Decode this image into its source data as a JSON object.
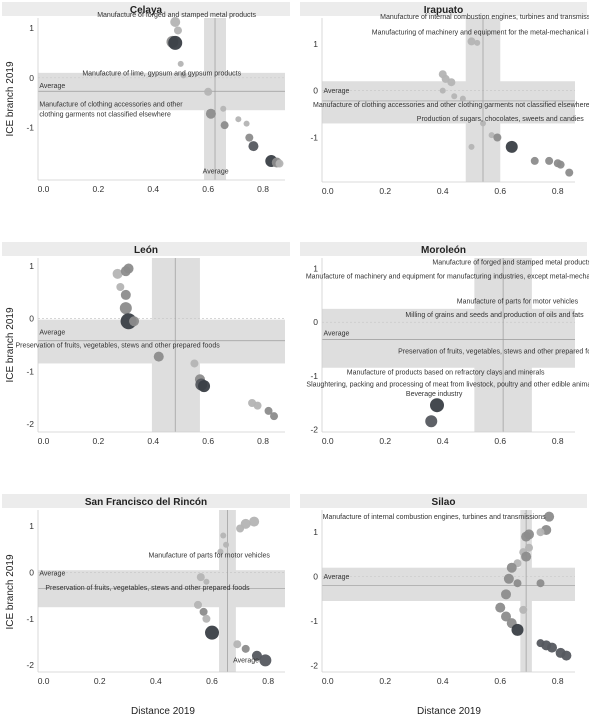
{
  "colors": {
    "header_bg": "#ececec",
    "band": "#dedede",
    "dot_light": "#b4b4b4",
    "dot_mid": "#8c8c8c",
    "dot_dark": "#55595f",
    "dot_darkest": "#3a3f46",
    "line": "#9a9a9a",
    "axis": "#cfcfcf",
    "text": "#333333"
  },
  "figure": {
    "y_axis_label": "ICE branch  2019",
    "x_axis_label": "Distance 2019"
  },
  "chart_data": [
    {
      "type": "scatter",
      "title": "Celaya",
      "xlim": [
        -0.02,
        0.88
      ],
      "ylim": [
        -2.05,
        1.2
      ],
      "xticks": [
        0.0,
        0.2,
        0.4,
        0.6,
        0.8
      ],
      "yticks": [
        1,
        0,
        -1
      ],
      "show_x_ticklabels": true,
      "show_y_ticklabels": true,
      "band_x": [
        0.585,
        0.665
      ],
      "band_y": [
        -0.65,
        0.1
      ],
      "avg_x": 0.625,
      "avg_y": -0.27,
      "points": [
        {
          "x": 0.48,
          "y": 1.12,
          "s": 5,
          "c": "light"
        },
        {
          "x": 0.49,
          "y": 0.95,
          "s": 4,
          "c": "light"
        },
        {
          "x": 0.47,
          "y": 0.72,
          "s": 6,
          "c": "mid"
        },
        {
          "x": 0.48,
          "y": 0.7,
          "s": 7,
          "c": "darkest"
        },
        {
          "x": 0.5,
          "y": 0.28,
          "s": 3,
          "c": "light"
        },
        {
          "x": 0.51,
          "y": 0.05,
          "s": 3,
          "c": "light"
        },
        {
          "x": 0.6,
          "y": -0.28,
          "s": 4,
          "c": "light"
        },
        {
          "x": 0.61,
          "y": -0.72,
          "s": 5,
          "c": "mid"
        },
        {
          "x": 0.655,
          "y": -0.62,
          "s": 3,
          "c": "light"
        },
        {
          "x": 0.66,
          "y": -0.95,
          "s": 4,
          "c": "mid"
        },
        {
          "x": 0.71,
          "y": -0.83,
          "s": 3,
          "c": "light"
        },
        {
          "x": 0.74,
          "y": -0.92,
          "s": 3,
          "c": "light"
        },
        {
          "x": 0.75,
          "y": -1.2,
          "s": 4,
          "c": "mid"
        },
        {
          "x": 0.765,
          "y": -1.37,
          "s": 5,
          "c": "dark"
        },
        {
          "x": 0.83,
          "y": -1.67,
          "s": 6,
          "c": "darkest"
        },
        {
          "x": 0.85,
          "y": -1.7,
          "s": 5,
          "c": "mid"
        },
        {
          "x": 0.86,
          "y": -1.72,
          "s": 4,
          "c": "light"
        }
      ],
      "annotations": [
        {
          "lines": [
            "Manufacture of forged and stamped metal products"
          ],
          "x": 0.485,
          "y": 1.22,
          "anchor": "middle"
        },
        {
          "lines": [
            "Manufacture of lime, gypsum and gypsum products"
          ],
          "x": 0.72,
          "y": 0.05,
          "anchor": "end"
        },
        {
          "lines": [
            "Average"
          ],
          "x": -0.015,
          "y": -0.2,
          "anchor": "start"
        },
        {
          "lines": [
            "Manufacture of clothing accessories and other",
            "clothing garments not classified elsewhere"
          ],
          "x": -0.015,
          "y": -0.58,
          "anchor": "start"
        },
        {
          "lines": [
            "Average"
          ],
          "x": 0.58,
          "y": -1.92,
          "anchor": "start"
        }
      ]
    },
    {
      "type": "scatter",
      "title": "Irapuato",
      "xlim": [
        -0.02,
        0.86
      ],
      "ylim": [
        -1.95,
        1.55
      ],
      "xticks": [
        0.0,
        0.2,
        0.4,
        0.6,
        0.8
      ],
      "yticks": [
        1,
        0,
        -1
      ],
      "show_x_ticklabels": true,
      "show_y_ticklabels": true,
      "band_x": [
        0.48,
        0.6
      ],
      "band_y": [
        -0.7,
        0.2
      ],
      "avg_x": 0.54,
      "avg_y": -0.22,
      "points": [
        {
          "x": 0.5,
          "y": 1.05,
          "s": 4,
          "c": "light"
        },
        {
          "x": 0.52,
          "y": 1.02,
          "s": 3,
          "c": "light"
        },
        {
          "x": 0.4,
          "y": 0.35,
          "s": 4,
          "c": "light"
        },
        {
          "x": 0.41,
          "y": 0.25,
          "s": 4,
          "c": "light"
        },
        {
          "x": 0.43,
          "y": 0.18,
          "s": 4,
          "c": "light"
        },
        {
          "x": 0.4,
          "y": 0.0,
          "s": 3,
          "c": "light"
        },
        {
          "x": 0.44,
          "y": -0.12,
          "s": 3,
          "c": "light"
        },
        {
          "x": 0.47,
          "y": -0.17,
          "s": 3,
          "c": "light"
        },
        {
          "x": 0.54,
          "y": -0.7,
          "s": 3,
          "c": "light"
        },
        {
          "x": 0.5,
          "y": -1.2,
          "s": 3,
          "c": "light"
        },
        {
          "x": 0.57,
          "y": -0.95,
          "s": 3,
          "c": "light"
        },
        {
          "x": 0.59,
          "y": -1.0,
          "s": 4,
          "c": "mid"
        },
        {
          "x": 0.64,
          "y": -1.2,
          "s": 6,
          "c": "darkest"
        },
        {
          "x": 0.72,
          "y": -1.5,
          "s": 4,
          "c": "mid"
        },
        {
          "x": 0.77,
          "y": -1.5,
          "s": 4,
          "c": "mid"
        },
        {
          "x": 0.8,
          "y": -1.55,
          "s": 4,
          "c": "mid"
        },
        {
          "x": 0.81,
          "y": -1.58,
          "s": 4,
          "c": "mid"
        },
        {
          "x": 0.84,
          "y": -1.75,
          "s": 4,
          "c": "mid"
        }
      ],
      "annotations": [
        {
          "lines": [
            "Manufacture of internal combustion engines, turbines and transmissions"
          ],
          "x": 0.57,
          "y": 1.53,
          "anchor": "middle"
        },
        {
          "lines": [
            "Manufacturing of machinery and equipment for the metal-mechanical industry"
          ],
          "x": 0.57,
          "y": 1.2,
          "anchor": "middle"
        },
        {
          "lines": [
            "Average"
          ],
          "x": -0.015,
          "y": -0.05,
          "anchor": "start"
        },
        {
          "lines": [
            "Manufacture of clothing accessories and other clothing garments not classified elsewhere"
          ],
          "x": 0.43,
          "y": -0.35,
          "anchor": "middle"
        },
        {
          "lines": [
            "Production of sugars, chocolates, sweets and candies"
          ],
          "x": 0.6,
          "y": -0.65,
          "anchor": "middle"
        }
      ]
    },
    {
      "type": "scatter",
      "title": "León",
      "xlim": [
        -0.02,
        0.88
      ],
      "ylim": [
        -2.15,
        1.15
      ],
      "xticks": [
        0.0,
        0.2,
        0.4,
        0.6,
        0.8
      ],
      "yticks": [
        1,
        0,
        -1,
        -2
      ],
      "show_x_ticklabels": true,
      "show_y_ticklabels": true,
      "band_x": [
        0.395,
        0.57
      ],
      "band_y": [
        -0.85,
        -0.02
      ],
      "avg_x": 0.48,
      "avg_y": -0.42,
      "points": [
        {
          "x": 0.27,
          "y": 0.85,
          "s": 5,
          "c": "light"
        },
        {
          "x": 0.3,
          "y": 0.9,
          "s": 5,
          "c": "mid"
        },
        {
          "x": 0.31,
          "y": 0.95,
          "s": 5,
          "c": "mid"
        },
        {
          "x": 0.28,
          "y": 0.6,
          "s": 4,
          "c": "light"
        },
        {
          "x": 0.3,
          "y": 0.45,
          "s": 5,
          "c": "mid"
        },
        {
          "x": 0.3,
          "y": 0.2,
          "s": 6,
          "c": "mid"
        },
        {
          "x": 0.31,
          "y": -0.05,
          "s": 8,
          "c": "darkest"
        },
        {
          "x": 0.33,
          "y": -0.05,
          "s": 5,
          "c": "mid"
        },
        {
          "x": 0.42,
          "y": -0.72,
          "s": 5,
          "c": "mid"
        },
        {
          "x": 0.55,
          "y": -0.85,
          "s": 4,
          "c": "light"
        },
        {
          "x": 0.57,
          "y": -1.15,
          "s": 5,
          "c": "mid"
        },
        {
          "x": 0.575,
          "y": -1.25,
          "s": 6,
          "c": "dark"
        },
        {
          "x": 0.585,
          "y": -1.28,
          "s": 6,
          "c": "darkest"
        },
        {
          "x": 0.76,
          "y": -1.6,
          "s": 4,
          "c": "light"
        },
        {
          "x": 0.78,
          "y": -1.65,
          "s": 4,
          "c": "light"
        },
        {
          "x": 0.82,
          "y": -1.75,
          "s": 4,
          "c": "mid"
        },
        {
          "x": 0.84,
          "y": -1.85,
          "s": 4,
          "c": "mid"
        }
      ],
      "annotations": [
        {
          "lines": [
            "Average"
          ],
          "x": -0.015,
          "y": -0.3,
          "anchor": "start"
        },
        {
          "lines": [
            "Preservation of fruits, vegetables, stews and other prepared foods"
          ],
          "x": 0.27,
          "y": -0.55,
          "anchor": "middle"
        }
      ]
    },
    {
      "type": "scatter",
      "title": "Moroleón",
      "xlim": [
        -0.02,
        0.86
      ],
      "ylim": [
        -2.05,
        1.2
      ],
      "xticks": [
        0.0,
        0.2,
        0.4,
        0.6,
        0.8
      ],
      "yticks": [
        1,
        0,
        -1,
        -2
      ],
      "show_x_ticklabels": true,
      "show_y_ticklabels": true,
      "band_x": [
        0.51,
        0.71
      ],
      "band_y": [
        -0.85,
        0.25
      ],
      "avg_x": 0.61,
      "avg_y": -0.32,
      "points": [
        {
          "x": 0.38,
          "y": -1.55,
          "s": 7,
          "c": "darkest"
        },
        {
          "x": 0.36,
          "y": -1.85,
          "s": 6,
          "c": "dark"
        }
      ],
      "annotations": [
        {
          "lines": [
            "Manufacture of forged and stamped metal products"
          ],
          "x": 0.64,
          "y": 1.08,
          "anchor": "middle"
        },
        {
          "lines": [
            "Manufacture of machinery and equipment for manufacturing industries, except metal-mechanics"
          ],
          "x": 0.44,
          "y": 0.82,
          "anchor": "middle"
        },
        {
          "lines": [
            "Manufacture of parts for motor vehicles"
          ],
          "x": 0.66,
          "y": 0.35,
          "anchor": "middle"
        },
        {
          "lines": [
            "Milling of grains and seeds and production of oils and fats"
          ],
          "x": 0.58,
          "y": 0.1,
          "anchor": "middle"
        },
        {
          "lines": [
            "Average"
          ],
          "x": -0.015,
          "y": -0.25,
          "anchor": "start"
        },
        {
          "lines": [
            "Preservation of fruits, vegetables, stews and other prepared foods"
          ],
          "x": 0.6,
          "y": -0.58,
          "anchor": "middle"
        },
        {
          "lines": [
            "Manufacture of products based on refractory clays and minerals"
          ],
          "x": 0.41,
          "y": -0.98,
          "anchor": "middle"
        },
        {
          "lines": [
            "Slaughtering, packing and processing of meat from livestock, poultry and other edible animals"
          ],
          "x": 0.43,
          "y": -1.2,
          "anchor": "middle"
        },
        {
          "lines": [
            "Beverage industry"
          ],
          "x": 0.37,
          "y": -1.38,
          "anchor": "middle"
        }
      ]
    },
    {
      "type": "scatter",
      "title": "San Francisco del Rincón",
      "xlim": [
        -0.02,
        0.86
      ],
      "ylim": [
        -2.15,
        1.35
      ],
      "xticks": [
        0.0,
        0.2,
        0.4,
        0.6,
        0.8
      ],
      "yticks": [
        1,
        0,
        -1,
        -2
      ],
      "show_x_ticklabels": true,
      "show_y_ticklabels": true,
      "band_x": [
        0.625,
        0.685
      ],
      "band_y": [
        -0.75,
        0.05
      ],
      "avg_x": 0.655,
      "avg_y": -0.35,
      "points": [
        {
          "x": 0.64,
          "y": 0.8,
          "s": 3,
          "c": "light"
        },
        {
          "x": 0.65,
          "y": 0.6,
          "s": 3,
          "c": "light"
        },
        {
          "x": 0.7,
          "y": 0.95,
          "s": 4,
          "c": "light"
        },
        {
          "x": 0.72,
          "y": 1.05,
          "s": 5,
          "c": "light"
        },
        {
          "x": 0.75,
          "y": 1.1,
          "s": 5,
          "c": "light"
        },
        {
          "x": 0.63,
          "y": 0.45,
          "s": 3,
          "c": "light"
        },
        {
          "x": 0.56,
          "y": -0.1,
          "s": 4,
          "c": "light"
        },
        {
          "x": 0.58,
          "y": -0.2,
          "s": 3,
          "c": "light"
        },
        {
          "x": 0.55,
          "y": -0.7,
          "s": 4,
          "c": "light"
        },
        {
          "x": 0.57,
          "y": -0.85,
          "s": 4,
          "c": "mid"
        },
        {
          "x": 0.58,
          "y": -1.0,
          "s": 4,
          "c": "light"
        },
        {
          "x": 0.6,
          "y": -1.3,
          "s": 7,
          "c": "darkest"
        },
        {
          "x": 0.69,
          "y": -1.55,
          "s": 4,
          "c": "light"
        },
        {
          "x": 0.72,
          "y": -1.65,
          "s": 4,
          "c": "mid"
        },
        {
          "x": 0.76,
          "y": -1.8,
          "s": 5,
          "c": "dark"
        },
        {
          "x": 0.79,
          "y": -1.9,
          "s": 6,
          "c": "dark"
        }
      ],
      "annotations": [
        {
          "lines": [
            "Manufacture of parts for motor vehicles"
          ],
          "x": 0.59,
          "y": 0.32,
          "anchor": "middle"
        },
        {
          "lines": [
            "Average"
          ],
          "x": -0.015,
          "y": -0.07,
          "anchor": "start"
        },
        {
          "lines": [
            "Preservation of fruits, vegetables, stews and other prepared foods"
          ],
          "x": 0.37,
          "y": -0.38,
          "anchor": "middle"
        },
        {
          "lines": [
            "Average"
          ],
          "x": 0.675,
          "y": -1.95,
          "anchor": "start"
        }
      ]
    },
    {
      "type": "scatter",
      "title": "Silao",
      "xlim": [
        -0.02,
        0.86
      ],
      "ylim": [
        -2.15,
        1.5
      ],
      "xticks": [
        0.0,
        0.2,
        0.4,
        0.6,
        0.8
      ],
      "yticks": [
        1,
        0,
        -1,
        -2
      ],
      "show_x_ticklabels": true,
      "show_y_ticklabels": true,
      "band_x": [
        0.67,
        0.71
      ],
      "band_y": [
        -0.55,
        0.2
      ],
      "avg_x": 0.69,
      "avg_y": -0.2,
      "points": [
        {
          "x": 0.77,
          "y": 1.35,
          "s": 5,
          "c": "mid"
        },
        {
          "x": 0.76,
          "y": 1.05,
          "s": 5,
          "c": "mid"
        },
        {
          "x": 0.74,
          "y": 1.0,
          "s": 4,
          "c": "light"
        },
        {
          "x": 0.7,
          "y": 0.95,
          "s": 5,
          "c": "mid"
        },
        {
          "x": 0.69,
          "y": 0.9,
          "s": 5,
          "c": "mid"
        },
        {
          "x": 0.7,
          "y": 0.65,
          "s": 4,
          "c": "light"
        },
        {
          "x": 0.68,
          "y": 0.55,
          "s": 4,
          "c": "light"
        },
        {
          "x": 0.69,
          "y": 0.45,
          "s": 5,
          "c": "mid"
        },
        {
          "x": 0.66,
          "y": 0.3,
          "s": 4,
          "c": "light"
        },
        {
          "x": 0.64,
          "y": 0.2,
          "s": 5,
          "c": "mid"
        },
        {
          "x": 0.63,
          "y": -0.05,
          "s": 5,
          "c": "mid"
        },
        {
          "x": 0.66,
          "y": -0.15,
          "s": 4,
          "c": "mid"
        },
        {
          "x": 0.74,
          "y": -0.15,
          "s": 4,
          "c": "mid"
        },
        {
          "x": 0.62,
          "y": -0.4,
          "s": 5,
          "c": "mid"
        },
        {
          "x": 0.6,
          "y": -0.7,
          "s": 5,
          "c": "mid"
        },
        {
          "x": 0.62,
          "y": -0.9,
          "s": 5,
          "c": "mid"
        },
        {
          "x": 0.64,
          "y": -1.05,
          "s": 5,
          "c": "mid"
        },
        {
          "x": 0.66,
          "y": -1.2,
          "s": 6,
          "c": "darkest"
        },
        {
          "x": 0.68,
          "y": -0.75,
          "s": 4,
          "c": "light"
        },
        {
          "x": 0.74,
          "y": -1.5,
          "s": 4,
          "c": "dark"
        },
        {
          "x": 0.76,
          "y": -1.55,
          "s": 5,
          "c": "dark"
        },
        {
          "x": 0.78,
          "y": -1.6,
          "s": 5,
          "c": "dark"
        },
        {
          "x": 0.81,
          "y": -1.72,
          "s": 5,
          "c": "dark"
        },
        {
          "x": 0.83,
          "y": -1.78,
          "s": 5,
          "c": "dark"
        }
      ],
      "annotations": [
        {
          "lines": [
            "Manufacture of internal combustion engines, turbines and transmissions"
          ],
          "x": 0.37,
          "y": 1.3,
          "anchor": "middle"
        },
        {
          "lines": [
            "Average"
          ],
          "x": -0.015,
          "y": -0.05,
          "anchor": "start"
        }
      ]
    }
  ]
}
